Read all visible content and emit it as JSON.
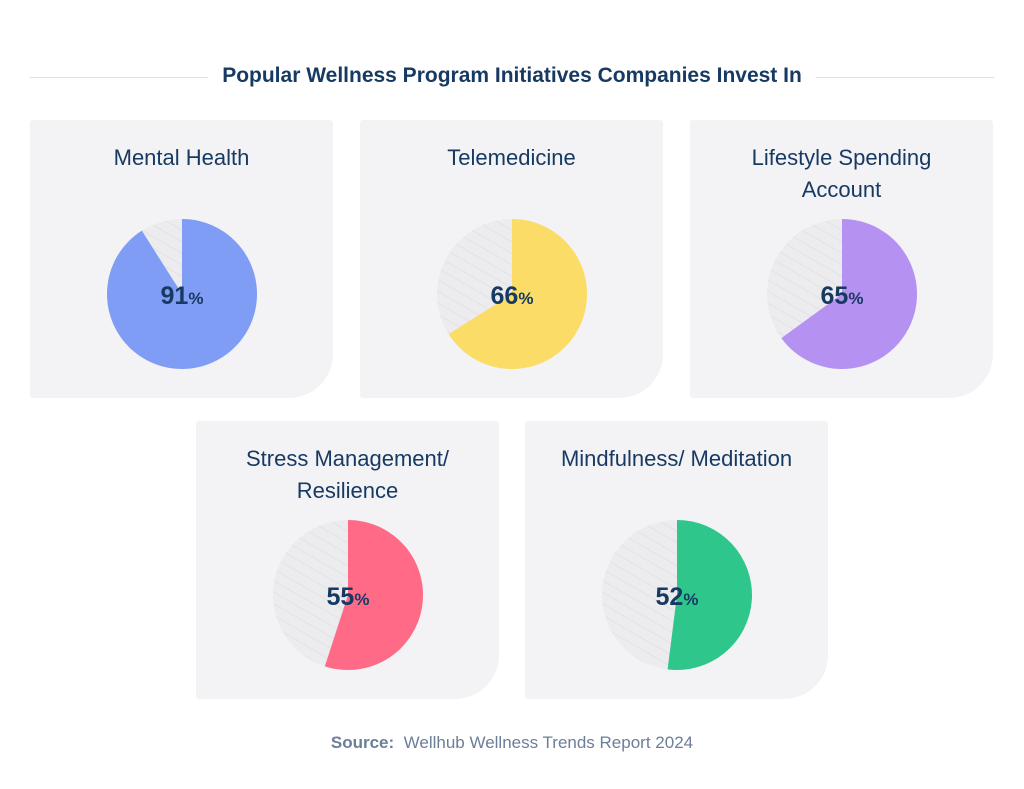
{
  "title": "Popular Wellness Program Initiatives Companies Invest In",
  "chart_data": [
    {
      "type": "pie",
      "title": "Mental Health",
      "values": [
        91
      ],
      "value_labels": [
        "91%"
      ],
      "color": "#7f9df5"
    },
    {
      "type": "pie",
      "title": "Telemedicine",
      "values": [
        66
      ],
      "value_labels": [
        "66%"
      ],
      "color": "#fadc66"
    },
    {
      "type": "pie",
      "title": "Lifestyle Spending Account",
      "values": [
        65
      ],
      "value_labels": [
        "65%"
      ],
      "color": "#b591f2"
    },
    {
      "type": "pie",
      "title": "Stress Management/ Resilience",
      "values": [
        55
      ],
      "value_labels": [
        "55%"
      ],
      "color": "#ff6a87"
    },
    {
      "type": "pie",
      "title": "Mindfulness/ Meditation",
      "values": [
        52
      ],
      "value_labels": [
        "52%"
      ],
      "color": "#2fc68b"
    }
  ],
  "source": {
    "label": "Source:",
    "text": "Wellhub Wellness Trends Report 2024"
  }
}
